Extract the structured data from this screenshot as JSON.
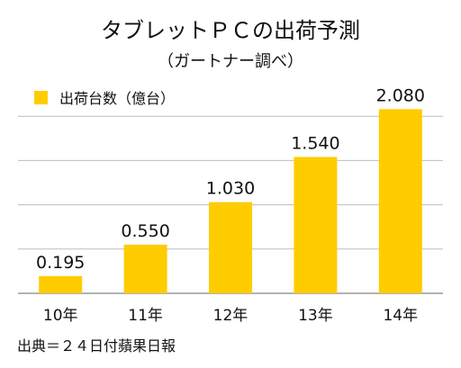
{
  "chart_data": {
    "type": "bar",
    "title": "タブレットＰＣの出荷予測",
    "subtitle": "（ガートナー調べ）",
    "legend": {
      "label": "出荷台数（億台）",
      "placement": "top-left"
    },
    "categories": [
      "10年",
      "11年",
      "12年",
      "13年",
      "14年"
    ],
    "series": [
      {
        "name": "出荷台数（億台）",
        "values": [
          0.195,
          0.55,
          1.03,
          1.54,
          2.08
        ],
        "value_labels": [
          "0.195",
          "0.550",
          "1.030",
          "1.540",
          "2.080"
        ]
      }
    ],
    "xlabel": "",
    "ylabel": "",
    "ylim": [
      0,
      2.5
    ],
    "grid": true,
    "gridlines": [
      0.5,
      1.0,
      1.5,
      2.0
    ],
    "colors": {
      "bar": "#FFCC00",
      "grid": "#BDBDBD",
      "baseline": "#9A9A9A"
    },
    "source": "出典＝２４日付蘋果日報"
  }
}
